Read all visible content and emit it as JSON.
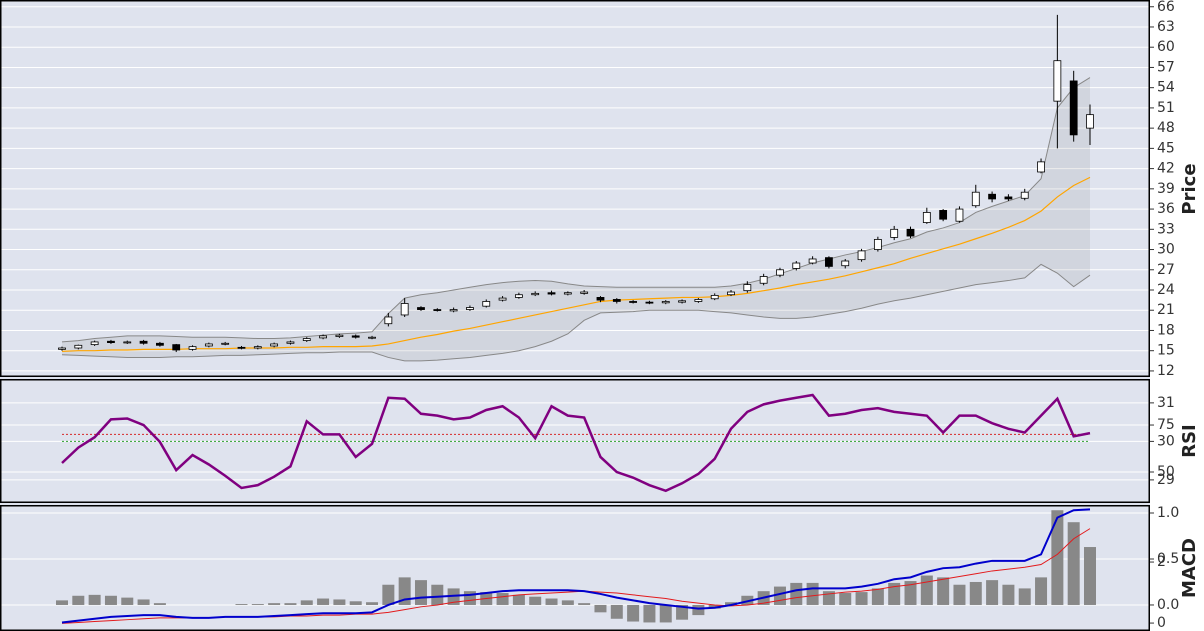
{
  "chart_data": [
    {
      "type": "candlestick",
      "ylabel": "Price",
      "open": [
        15.2,
        15.4,
        15.9,
        16.4,
        16.2,
        16.4,
        16.1,
        15.9,
        15.2,
        15.7,
        16.0,
        15.5,
        15.4,
        15.7,
        16.1,
        16.5,
        16.9,
        17.1,
        17.2,
        16.9,
        19.0,
        20.3,
        21.4,
        21.1,
        20.9,
        21.1,
        21.6,
        22.5,
        22.9,
        23.3,
        23.6,
        23.4,
        23.5,
        22.9,
        22.6,
        22.3,
        22.2,
        22.1,
        22.2,
        22.3,
        22.7,
        23.3,
        23.9,
        25.0,
        26.2,
        27.2,
        28.0,
        28.8,
        27.6,
        28.5,
        30.0,
        31.8,
        33.0,
        34.0,
        35.8,
        34.2,
        36.5,
        38.2,
        37.8,
        37.6,
        41.5,
        52.0,
        55.0,
        48.0
      ],
      "high": [
        15.6,
        15.9,
        16.5,
        16.6,
        16.5,
        16.6,
        16.3,
        16.0,
        15.8,
        16.2,
        16.3,
        15.7,
        15.8,
        16.2,
        16.5,
        17.0,
        17.4,
        17.5,
        17.4,
        17.2,
        20.6,
        22.8,
        21.6,
        21.3,
        21.4,
        21.7,
        22.6,
        23.1,
        23.6,
        23.8,
        23.9,
        23.8,
        24.0,
        23.1,
        22.8,
        22.5,
        22.4,
        22.5,
        22.6,
        22.8,
        23.5,
        24.0,
        25.3,
        26.4,
        27.3,
        28.3,
        29.0,
        29.0,
        28.6,
        30.1,
        31.9,
        33.5,
        33.4,
        36.2,
        36.0,
        36.4,
        39.6,
        38.6,
        38.2,
        39.0,
        43.5,
        64.8,
        56.5,
        51.5
      ],
      "low": [
        15.0,
        15.2,
        15.7,
        16.0,
        16.0,
        15.9,
        15.6,
        14.8,
        15.0,
        15.5,
        15.8,
        15.2,
        15.2,
        15.5,
        15.9,
        16.3,
        16.7,
        16.9,
        16.8,
        16.7,
        18.6,
        20.0,
        20.9,
        20.8,
        20.7,
        20.9,
        21.4,
        22.3,
        22.7,
        23.1,
        23.2,
        23.2,
        23.3,
        22.2,
        22.0,
        22.0,
        21.9,
        21.9,
        22.0,
        22.1,
        22.5,
        23.1,
        23.6,
        24.7,
        25.9,
        26.9,
        27.8,
        27.2,
        27.2,
        28.2,
        29.7,
        31.4,
        31.7,
        33.8,
        34.2,
        34.0,
        36.2,
        37.0,
        37.2,
        37.3,
        41.3,
        45.0,
        46.0,
        45.5
      ],
      "close": [
        15.4,
        15.8,
        16.3,
        16.2,
        16.3,
        16.1,
        15.8,
        15.1,
        15.6,
        16.0,
        16.1,
        15.4,
        15.6,
        16.0,
        16.3,
        16.8,
        17.2,
        17.3,
        17.0,
        17.0,
        20.0,
        22.0,
        21.1,
        21.0,
        21.1,
        21.4,
        22.3,
        22.8,
        23.3,
        23.5,
        23.4,
        23.6,
        23.7,
        22.5,
        22.3,
        22.2,
        22.1,
        22.3,
        22.4,
        22.6,
        23.2,
        23.7,
        24.8,
        26.0,
        27.0,
        28.0,
        28.6,
        27.5,
        28.3,
        29.8,
        31.5,
        33.0,
        32.0,
        35.5,
        34.5,
        36.0,
        38.5,
        37.5,
        37.5,
        38.5,
        43.0,
        58.0,
        47.0,
        50.0
      ],
      "upper_band": [
        16.3,
        16.5,
        16.8,
        17.0,
        17.2,
        17.2,
        17.2,
        17.1,
        17.0,
        17.0,
        17.0,
        16.9,
        16.8,
        16.8,
        16.9,
        17.1,
        17.3,
        17.5,
        17.6,
        17.8,
        20.5,
        22.8,
        23.3,
        23.6,
        24.0,
        24.4,
        24.8,
        25.1,
        25.3,
        25.4,
        25.3,
        24.9,
        24.6,
        24.5,
        24.4,
        24.4,
        24.4,
        24.4,
        24.4,
        24.4,
        24.4,
        24.6,
        25.0,
        25.6,
        26.4,
        27.2,
        28.0,
        28.6,
        29.2,
        29.7,
        30.3,
        31.0,
        31.6,
        32.6,
        33.2,
        34.0,
        35.5,
        36.4,
        37.2,
        38.0,
        40.5,
        51.0,
        54.0,
        55.5
      ],
      "lower_band": [
        14.4,
        14.3,
        14.2,
        14.1,
        14.0,
        14.0,
        14.0,
        14.1,
        14.1,
        14.2,
        14.3,
        14.3,
        14.4,
        14.5,
        14.6,
        14.7,
        14.7,
        14.8,
        14.8,
        14.8,
        14.0,
        13.5,
        13.5,
        13.6,
        13.8,
        14.0,
        14.3,
        14.6,
        15.0,
        15.6,
        16.4,
        17.5,
        19.5,
        20.6,
        20.7,
        20.8,
        21.0,
        21.0,
        21.0,
        21.0,
        20.8,
        20.6,
        20.3,
        20.0,
        19.8,
        19.8,
        20.0,
        20.4,
        20.8,
        21.3,
        21.9,
        22.4,
        22.8,
        23.3,
        23.8,
        24.3,
        24.8,
        25.1,
        25.4,
        25.8,
        27.8,
        26.5,
        24.5,
        26.2
      ],
      "sma": [
        14.9,
        15.0,
        15.0,
        15.1,
        15.1,
        15.2,
        15.2,
        15.2,
        15.3,
        15.3,
        15.3,
        15.4,
        15.4,
        15.4,
        15.5,
        15.5,
        15.6,
        15.6,
        15.6,
        15.7,
        16.0,
        16.5,
        17.0,
        17.4,
        17.9,
        18.3,
        18.8,
        19.3,
        19.8,
        20.3,
        20.8,
        21.3,
        21.8,
        22.3,
        22.5,
        22.6,
        22.7,
        22.8,
        22.9,
        22.9,
        23.0,
        23.2,
        23.5,
        23.9,
        24.3,
        24.8,
        25.2,
        25.6,
        26.1,
        26.7,
        27.3,
        27.9,
        28.7,
        29.4,
        30.1,
        30.8,
        31.6,
        32.4,
        33.3,
        34.3,
        35.7,
        37.8,
        39.5,
        40.7
      ],
      "band_color": "#888888",
      "sma_color": "#ffa500",
      "ylim": [
        11.1,
        67.0
      ],
      "yticks": [
        12,
        15,
        18,
        21,
        24,
        27,
        30,
        33,
        36,
        39,
        42,
        45,
        48,
        51,
        54,
        57,
        60,
        63,
        66
      ],
      "grid": true
    },
    {
      "type": "line",
      "ylabel": "RSI",
      "values": [
        54.8,
        63,
        68.5,
        78,
        78.5,
        75,
        66,
        51,
        59,
        54,
        48,
        41.5,
        43,
        47.5,
        53,
        77,
        70,
        70,
        58,
        65,
        89.5,
        89,
        81,
        80,
        78,
        79,
        83,
        85,
        79,
        68,
        85,
        80,
        79,
        58,
        50,
        47,
        43,
        40,
        44,
        49,
        57,
        73,
        82,
        86,
        88,
        89.5,
        91,
        80,
        81,
        83,
        84,
        82,
        81,
        80,
        71,
        80,
        80,
        76,
        73,
        71,
        80,
        89,
        69,
        70.7
      ],
      "color": "#800080",
      "ylim": [
        33.5,
        99.5
      ],
      "yticks": [
        50,
        75
      ],
      "y2lim": [
        28.4,
        31.62
      ],
      "y2ticks": [
        29,
        30,
        31
      ],
      "grid": true,
      "hlines": [
        {
          "value": 70,
          "color": "#d62728"
        },
        {
          "value": 30,
          "axis": "y2",
          "color": "#2ca02c"
        }
      ]
    },
    {
      "type": "macd",
      "ylabel": "MACD",
      "macd": [
        -0.19,
        -0.17,
        -0.15,
        -0.13,
        -0.12,
        -0.11,
        -0.11,
        -0.13,
        -0.14,
        -0.14,
        -0.13,
        -0.13,
        -0.13,
        -0.12,
        -0.11,
        -0.1,
        -0.09,
        -0.09,
        -0.09,
        -0.08,
        0.0,
        0.06,
        0.08,
        0.09,
        0.1,
        0.11,
        0.13,
        0.15,
        0.16,
        0.16,
        0.16,
        0.16,
        0.15,
        0.12,
        0.08,
        0.05,
        0.02,
        0.0,
        -0.02,
        -0.04,
        -0.03,
        0.0,
        0.04,
        0.08,
        0.12,
        0.16,
        0.18,
        0.18,
        0.18,
        0.2,
        0.23,
        0.28,
        0.3,
        0.36,
        0.4,
        0.41,
        0.45,
        0.48,
        0.48,
        0.48,
        0.55,
        0.95,
        1.03,
        1.04
      ],
      "signal": [
        -0.2,
        -0.19,
        -0.18,
        -0.17,
        -0.16,
        -0.15,
        -0.14,
        -0.14,
        -0.14,
        -0.14,
        -0.13,
        -0.13,
        -0.13,
        -0.13,
        -0.12,
        -0.12,
        -0.11,
        -0.11,
        -0.1,
        -0.1,
        -0.08,
        -0.05,
        -0.02,
        0.0,
        0.03,
        0.05,
        0.07,
        0.09,
        0.11,
        0.12,
        0.13,
        0.14,
        0.15,
        0.14,
        0.13,
        0.11,
        0.09,
        0.07,
        0.04,
        0.02,
        0.0,
        -0.01,
        0.0,
        0.02,
        0.05,
        0.08,
        0.1,
        0.12,
        0.14,
        0.15,
        0.17,
        0.2,
        0.22,
        0.25,
        0.28,
        0.31,
        0.34,
        0.37,
        0.39,
        0.41,
        0.44,
        0.55,
        0.72,
        0.83
      ],
      "histogram": [
        0.05,
        0.1,
        0.11,
        0.1,
        0.08,
        0.06,
        0.02,
        0.0,
        0.0,
        0.0,
        0.0,
        0.01,
        0.01,
        0.02,
        0.02,
        0.05,
        0.07,
        0.06,
        0.04,
        0.03,
        0.22,
        0.3,
        0.27,
        0.22,
        0.18,
        0.15,
        0.14,
        0.13,
        0.11,
        0.09,
        0.07,
        0.05,
        0.02,
        -0.08,
        -0.15,
        -0.18,
        -0.19,
        -0.19,
        -0.16,
        -0.11,
        -0.04,
        0.03,
        0.1,
        0.15,
        0.2,
        0.24,
        0.24,
        0.15,
        0.13,
        0.14,
        0.18,
        0.24,
        0.26,
        0.32,
        0.3,
        0.22,
        0.25,
        0.27,
        0.22,
        0.18,
        0.3,
        1.03,
        0.9,
        0.63
      ],
      "macd_color": "#0000cc",
      "signal_color": "#e31a1c",
      "histogram_color": "#888888",
      "ylim": [
        -0.283,
        1.087
      ],
      "yticks": [
        {
          "value": 0,
          "label": "0.0"
        },
        0.5,
        {
          "value": 1,
          "label": "1.0"
        }
      ],
      "y2lim": [
        -0.26,
        3.87
      ],
      "y2ticks": [
        0,
        2
      ],
      "grid": true
    }
  ]
}
